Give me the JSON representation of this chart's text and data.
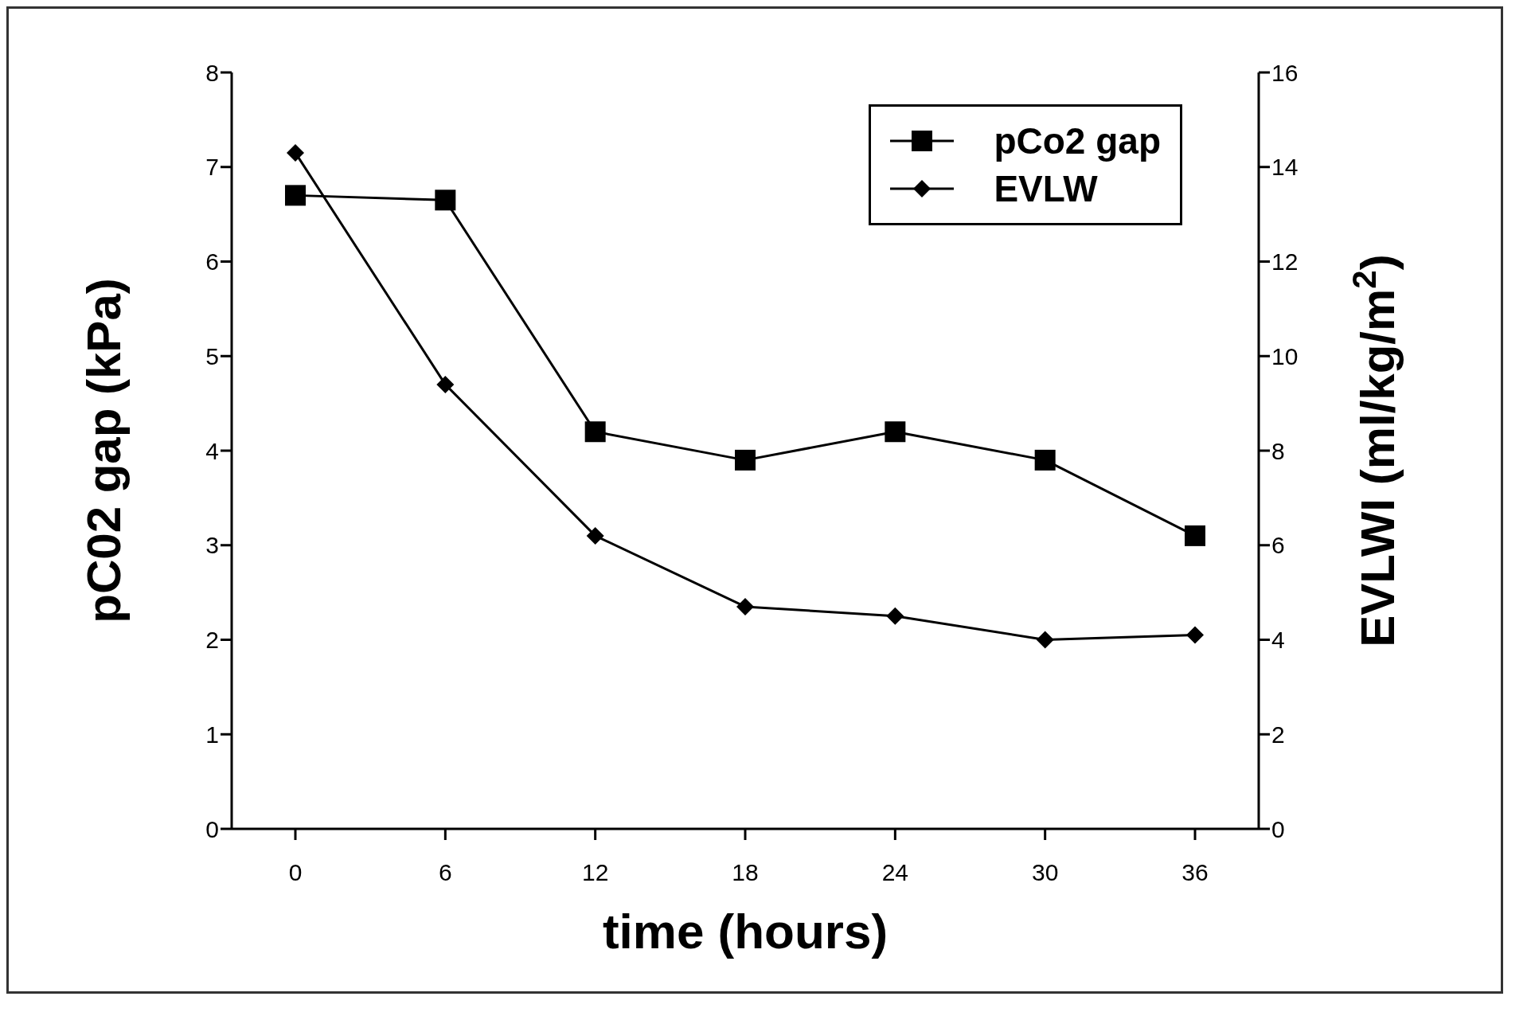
{
  "chart_data": {
    "type": "line",
    "xlabel": "time (hours)",
    "ylabel": "pC02 gap (kPa)",
    "y2label": "EVLWI (ml/kg/m$^{2}$)",
    "categories": [
      "0",
      "6",
      "12",
      "18",
      "24",
      "30",
      "36"
    ],
    "series": [
      {
        "name": "pCo2 gap",
        "color": "#000000",
        "marker": "square",
        "values": [
          6.7,
          6.65,
          4.2,
          3.9,
          4.2,
          3.9,
          3.1
        ]
      },
      {
        "name": "EVLW",
        "color": "#000000",
        "marker": "diamond",
        "axis": "y2",
        "values": [
          14.3,
          9.4,
          6.2,
          4.7,
          4.5,
          4.0,
          4.1
        ]
      }
    ],
    "ylim": [
      0,
      8
    ],
    "yticks": [
      0,
      1,
      2,
      3,
      4,
      5,
      6,
      7,
      8
    ],
    "y2lim": [
      0,
      16
    ],
    "y2ticks": [
      0,
      2,
      4,
      6,
      8,
      10,
      12,
      14,
      16
    ],
    "grid": false,
    "legend": "top right",
    "line_style": "solid"
  }
}
